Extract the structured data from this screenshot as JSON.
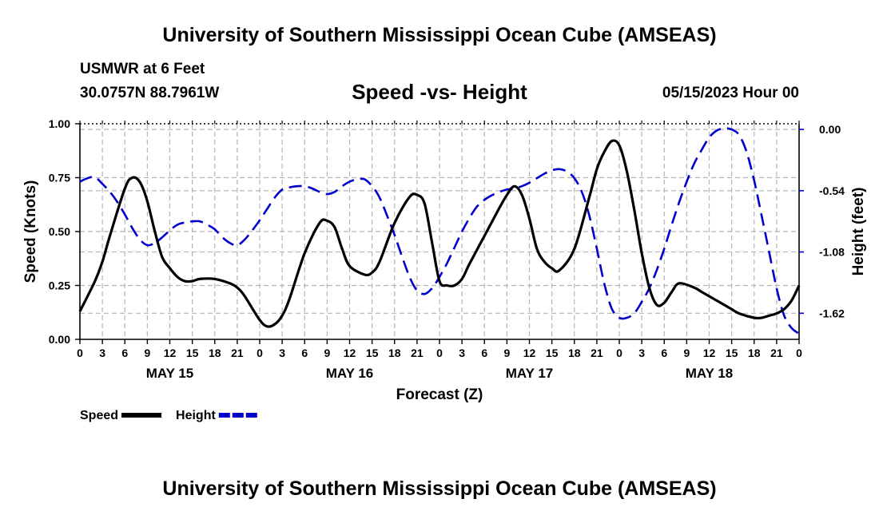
{
  "header": {
    "title": "University of Southern Mississippi Ocean Cube (AMSEAS)",
    "station": "USMWR at 6 Feet",
    "coordinates": "30.0757N  88.7961W",
    "subtitle": "Speed -vs- Height",
    "datetime": "05/15/2023 Hour 00"
  },
  "footer": {
    "title": "University of Southern Mississippi Ocean Cube (AMSEAS)"
  },
  "chart_data": {
    "type": "line",
    "xlabel": "Forecast (Z)",
    "ylabel_left": "Speed (Knots)",
    "ylabel_right": "Height (feet)",
    "x_range_hours": [
      0,
      96
    ],
    "x_tick_step_hours": 3,
    "x_tick_labels": [
      "0",
      "3",
      "6",
      "9",
      "12",
      "15",
      "18",
      "21",
      "0",
      "3",
      "6",
      "9",
      "12",
      "15",
      "18",
      "21",
      "0",
      "3",
      "6",
      "9",
      "12",
      "15",
      "18",
      "21",
      "0",
      "3",
      "6",
      "9",
      "12",
      "15",
      "18",
      "21",
      "0"
    ],
    "day_labels": [
      {
        "label": "MAY 15",
        "hour": 12
      },
      {
        "label": "MAY 16",
        "hour": 36
      },
      {
        "label": "MAY 17",
        "hour": 60
      },
      {
        "label": "MAY 18",
        "hour": 84
      }
    ],
    "ylim_left": [
      0,
      1
    ],
    "yticks_left": [
      "0.00",
      "0.25",
      "0.50",
      "0.75",
      "1.00"
    ],
    "ylim_right": [
      -1.85,
      0.05
    ],
    "yticks_right": [
      {
        "value": 0.0,
        "label": "0.00"
      },
      {
        "value": -0.54,
        "label": "-0.54"
      },
      {
        "value": -1.08,
        "label": "-1.08"
      },
      {
        "value": -1.62,
        "label": "-1.62"
      }
    ],
    "grid": true,
    "series": [
      {
        "name": "Speed",
        "axis": "left",
        "color": "#000000",
        "dash": "solid",
        "x": [
          0,
          2,
          3,
          4,
          6,
          7,
          8,
          9,
          10,
          11,
          12,
          13,
          14,
          15,
          16,
          18,
          20,
          21,
          22,
          24,
          25,
          26,
          27,
          28,
          30,
          32,
          33,
          34,
          35,
          36,
          38,
          39,
          40,
          42,
          44,
          45,
          46,
          47,
          48,
          49,
          50,
          51,
          52,
          54,
          56,
          57,
          58,
          59,
          60,
          61,
          62,
          63,
          64,
          66,
          68,
          69,
          70,
          71,
          72,
          73,
          74,
          75,
          76,
          77,
          78,
          79,
          80,
          82,
          83,
          84,
          85,
          86,
          87,
          88,
          90,
          91,
          92,
          93,
          94,
          95,
          96
        ],
        "values": [
          0.13,
          0.27,
          0.36,
          0.48,
          0.7,
          0.75,
          0.73,
          0.64,
          0.5,
          0.38,
          0.33,
          0.29,
          0.27,
          0.27,
          0.28,
          0.28,
          0.26,
          0.24,
          0.2,
          0.09,
          0.06,
          0.07,
          0.11,
          0.19,
          0.4,
          0.54,
          0.55,
          0.52,
          0.42,
          0.34,
          0.3,
          0.31,
          0.36,
          0.54,
          0.66,
          0.67,
          0.63,
          0.45,
          0.27,
          0.25,
          0.25,
          0.28,
          0.35,
          0.48,
          0.61,
          0.67,
          0.71,
          0.67,
          0.56,
          0.42,
          0.36,
          0.33,
          0.32,
          0.42,
          0.66,
          0.79,
          0.87,
          0.92,
          0.9,
          0.78,
          0.6,
          0.4,
          0.24,
          0.16,
          0.17,
          0.22,
          0.26,
          0.24,
          0.22,
          0.2,
          0.18,
          0.16,
          0.14,
          0.12,
          0.1,
          0.1,
          0.11,
          0.12,
          0.14,
          0.18,
          0.25
        ]
      },
      {
        "name": "Height",
        "axis": "right",
        "color": "#0000cc",
        "dash": "dashed",
        "x": [
          0,
          1,
          2,
          3,
          4,
          5,
          6,
          7,
          8,
          9,
          10,
          11,
          12,
          13,
          14,
          15,
          16,
          17,
          18,
          19,
          20,
          21,
          22,
          23,
          24,
          25,
          26,
          27,
          28,
          29,
          30,
          31,
          32,
          33,
          34,
          35,
          36,
          37,
          38,
          39,
          40,
          41,
          42,
          43,
          44,
          45,
          46,
          47,
          48,
          49,
          50,
          51,
          52,
          53,
          54,
          55,
          56,
          57,
          58,
          59,
          60,
          61,
          62,
          63,
          64,
          65,
          66,
          67,
          68,
          69,
          70,
          71,
          72,
          73,
          74,
          75,
          76,
          77,
          78,
          79,
          80,
          81,
          82,
          83,
          84,
          85,
          86,
          87,
          88,
          89,
          90,
          91,
          92,
          93,
          94,
          95,
          96
        ],
        "values": [
          -0.46,
          -0.43,
          -0.42,
          -0.48,
          -0.55,
          -0.64,
          -0.75,
          -0.87,
          -0.97,
          -1.02,
          -1.0,
          -0.95,
          -0.89,
          -0.84,
          -0.82,
          -0.81,
          -0.81,
          -0.84,
          -0.88,
          -0.95,
          -1.0,
          -1.02,
          -0.97,
          -0.89,
          -0.8,
          -0.7,
          -0.6,
          -0.53,
          -0.51,
          -0.5,
          -0.5,
          -0.52,
          -0.55,
          -0.57,
          -0.55,
          -0.5,
          -0.46,
          -0.44,
          -0.44,
          -0.5,
          -0.6,
          -0.76,
          -0.93,
          -1.12,
          -1.3,
          -1.42,
          -1.45,
          -1.4,
          -1.3,
          -1.18,
          -1.04,
          -0.9,
          -0.78,
          -0.68,
          -0.62,
          -0.58,
          -0.55,
          -0.53,
          -0.52,
          -0.5,
          -0.47,
          -0.43,
          -0.39,
          -0.36,
          -0.35,
          -0.37,
          -0.43,
          -0.55,
          -0.76,
          -1.05,
          -1.36,
          -1.58,
          -1.66,
          -1.66,
          -1.62,
          -1.52,
          -1.4,
          -1.24,
          -1.05,
          -0.84,
          -0.64,
          -0.46,
          -0.3,
          -0.18,
          -0.07,
          -0.01,
          0.01,
          0.0,
          -0.05,
          -0.2,
          -0.45,
          -0.76,
          -1.08,
          -1.4,
          -1.64,
          -1.75,
          -1.8
        ]
      }
    ],
    "legend": [
      {
        "label": "Speed",
        "color": "#000000",
        "dash": "solid"
      },
      {
        "label": "Height",
        "color": "#0000cc",
        "dash": "dashed"
      }
    ],
    "legend_placement": "bottom-left"
  }
}
